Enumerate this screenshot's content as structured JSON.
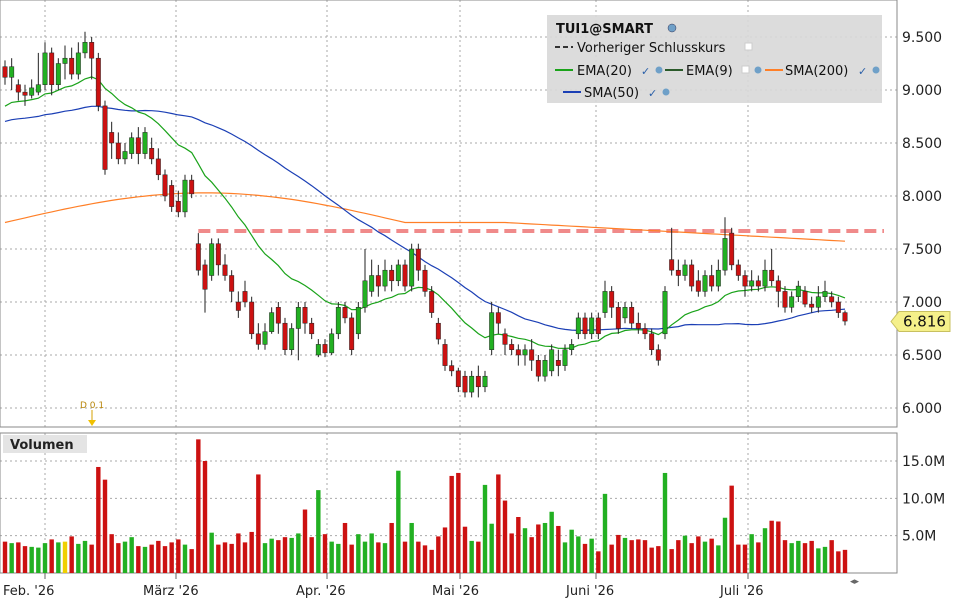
{
  "chart_data": {
    "type": "candlestick",
    "symbol": "TUI1@SMART",
    "legend": {
      "title": "TUI1@SMART",
      "prev_close_label": "Vorheriger Schlusskurs",
      "ema20_label": "EMA(20)",
      "ema9_label": "EMA(9)",
      "sma200_label": "SMA(200)",
      "sma50_label": "SMA(50)",
      "position": "top-right"
    },
    "colors": {
      "up": "#22b022",
      "down": "#cc1111",
      "ema20": "#1aa31a",
      "sma50": "#1b3fb5",
      "sma200": "#ff7f27",
      "prev_close": "#f08a8a",
      "grid": "#aaaaaa",
      "last_price_bg": "#f5f08a"
    },
    "price_axis": {
      "ticks": [
        "9.500",
        "9.000",
        "8.500",
        "8.000",
        "7.500",
        "7.000",
        "6.500",
        "6.000"
      ],
      "ylim": [
        5.8,
        9.85
      ]
    },
    "volume_axis": {
      "title": "Volumen",
      "ticks": [
        "15.0M",
        "10.0M",
        "5.0M"
      ],
      "ylim": [
        0,
        18.5
      ]
    },
    "x_axis": {
      "labels": [
        "Feb. '26",
        "März '26",
        "Apr. '26",
        "Mai '26",
        "Juni '26",
        "Juli '26"
      ]
    },
    "dividend_marker": "D 0.1",
    "last_price": "6.816",
    "prev_close_value": 7.67,
    "candles": [
      {
        "o": 9.22,
        "c": 9.12,
        "h": 9.28,
        "l": 9.05
      },
      {
        "o": 9.12,
        "c": 9.22,
        "h": 9.3,
        "l": 9.0
      },
      {
        "o": 9.05,
        "c": 8.98,
        "h": 9.1,
        "l": 8.9
      },
      {
        "o": 8.98,
        "c": 8.95,
        "h": 9.05,
        "l": 8.85
      },
      {
        "o": 8.95,
        "c": 9.02,
        "h": 9.1,
        "l": 8.92
      },
      {
        "o": 8.98,
        "c": 9.05,
        "h": 9.35,
        "l": 8.95
      },
      {
        "o": 9.05,
        "c": 9.35,
        "h": 9.45,
        "l": 9.0
      },
      {
        "o": 9.35,
        "c": 9.05,
        "h": 9.4,
        "l": 8.95
      },
      {
        "o": 9.05,
        "c": 9.25,
        "h": 9.3,
        "l": 9.0
      },
      {
        "o": 9.25,
        "c": 9.3,
        "h": 9.42,
        "l": 9.1
      },
      {
        "o": 9.3,
        "c": 9.15,
        "h": 9.4,
        "l": 9.1
      },
      {
        "o": 9.15,
        "c": 9.35,
        "h": 9.45,
        "l": 9.1
      },
      {
        "o": 9.35,
        "c": 9.45,
        "h": 9.55,
        "l": 9.3
      },
      {
        "o": 9.45,
        "c": 9.3,
        "h": 9.5,
        "l": 9.1
      },
      {
        "o": 9.3,
        "c": 8.85,
        "h": 9.35,
        "l": 8.8
      },
      {
        "o": 8.85,
        "c": 8.25,
        "h": 8.9,
        "l": 8.2
      },
      {
        "o": 8.6,
        "c": 8.5,
        "h": 8.7,
        "l": 8.35
      },
      {
        "o": 8.5,
        "c": 8.35,
        "h": 8.6,
        "l": 8.3
      },
      {
        "o": 8.35,
        "c": 8.42,
        "h": 8.5,
        "l": 8.3
      },
      {
        "o": 8.4,
        "c": 8.55,
        "h": 8.6,
        "l": 8.35
      },
      {
        "o": 8.55,
        "c": 8.4,
        "h": 8.65,
        "l": 8.3
      },
      {
        "o": 8.4,
        "c": 8.6,
        "h": 8.65,
        "l": 8.35
      },
      {
        "o": 8.45,
        "c": 8.35,
        "h": 8.55,
        "l": 8.3
      },
      {
        "o": 8.35,
        "c": 8.2,
        "h": 8.45,
        "l": 8.15
      },
      {
        "o": 8.2,
        "c": 8.0,
        "h": 8.25,
        "l": 7.95
      },
      {
        "o": 8.1,
        "c": 7.9,
        "h": 8.15,
        "l": 7.85
      },
      {
        "o": 7.95,
        "c": 7.85,
        "h": 8.05,
        "l": 7.8
      },
      {
        "o": 7.85,
        "c": 8.15,
        "h": 8.2,
        "l": 7.8
      },
      {
        "o": 8.15,
        "c": 8.02,
        "h": 8.2,
        "l": 7.98
      },
      {
        "o": 7.55,
        "c": 7.3,
        "h": 7.65,
        "l": 7.25
      },
      {
        "o": 7.35,
        "c": 7.12,
        "h": 7.4,
        "l": 6.9
      },
      {
        "o": 7.25,
        "c": 7.55,
        "h": 7.6,
        "l": 7.2
      },
      {
        "o": 7.55,
        "c": 7.35,
        "h": 7.6,
        "l": 7.25
      },
      {
        "o": 7.35,
        "c": 7.25,
        "h": 7.45,
        "l": 7.2
      },
      {
        "o": 7.25,
        "c": 7.1,
        "h": 7.3,
        "l": 7.0
      },
      {
        "o": 7.0,
        "c": 6.92,
        "h": 7.1,
        "l": 6.85
      },
      {
        "o": 7.1,
        "c": 7.0,
        "h": 7.2,
        "l": 6.95
      },
      {
        "o": 7.0,
        "c": 6.7,
        "h": 7.05,
        "l": 6.65
      },
      {
        "o": 6.7,
        "c": 6.6,
        "h": 6.8,
        "l": 6.55
      },
      {
        "o": 6.6,
        "c": 6.72,
        "h": 6.8,
        "l": 6.55
      },
      {
        "o": 6.72,
        "c": 6.9,
        "h": 6.95,
        "l": 6.7
      },
      {
        "o": 6.95,
        "c": 6.8,
        "h": 7.0,
        "l": 6.7
      },
      {
        "o": 6.8,
        "c": 6.55,
        "h": 6.85,
        "l": 6.5
      },
      {
        "o": 6.55,
        "c": 6.75,
        "h": 6.8,
        "l": 6.5
      },
      {
        "o": 6.75,
        "c": 6.95,
        "h": 7.0,
        "l": 6.45
      },
      {
        "o": 6.95,
        "c": 6.8,
        "h": 7.0,
        "l": 6.7
      },
      {
        "o": 6.8,
        "c": 6.7,
        "h": 6.85,
        "l": 6.65
      },
      {
        "o": 6.5,
        "c": 6.6,
        "h": 6.65,
        "l": 6.48
      },
      {
        "o": 6.6,
        "c": 6.52,
        "h": 6.65,
        "l": 6.48
      },
      {
        "o": 6.52,
        "c": 6.7,
        "h": 6.75,
        "l": 6.5
      },
      {
        "o": 6.7,
        "c": 6.95,
        "h": 7.0,
        "l": 6.65
      },
      {
        "o": 6.95,
        "c": 6.85,
        "h": 7.0,
        "l": 6.8
      },
      {
        "o": 6.85,
        "c": 6.55,
        "h": 6.9,
        "l": 6.5
      },
      {
        "o": 6.7,
        "c": 6.95,
        "h": 7.0,
        "l": 6.65
      },
      {
        "o": 6.95,
        "c": 7.2,
        "h": 7.5,
        "l": 6.9
      },
      {
        "o": 7.1,
        "c": 7.25,
        "h": 7.4,
        "l": 7.05
      },
      {
        "o": 7.25,
        "c": 7.15,
        "h": 7.35,
        "l": 7.05
      },
      {
        "o": 7.15,
        "c": 7.3,
        "h": 7.4,
        "l": 7.1
      },
      {
        "o": 7.3,
        "c": 7.2,
        "h": 7.35,
        "l": 7.1
      },
      {
        "o": 7.2,
        "c": 7.35,
        "h": 7.4,
        "l": 7.15
      },
      {
        "o": 7.35,
        "c": 7.15,
        "h": 7.4,
        "l": 7.1
      },
      {
        "o": 7.15,
        "c": 7.5,
        "h": 7.55,
        "l": 7.1
      },
      {
        "o": 7.5,
        "c": 7.3,
        "h": 7.55,
        "l": 7.2
      },
      {
        "o": 7.3,
        "c": 7.1,
        "h": 7.35,
        "l": 7.05
      },
      {
        "o": 7.1,
        "c": 6.9,
        "h": 7.15,
        "l": 6.85
      },
      {
        "o": 6.8,
        "c": 6.65,
        "h": 6.85,
        "l": 6.6
      },
      {
        "o": 6.6,
        "c": 6.4,
        "h": 6.65,
        "l": 6.35
      },
      {
        "o": 6.4,
        "c": 6.35,
        "h": 6.45,
        "l": 6.3
      },
      {
        "o": 6.35,
        "c": 6.2,
        "h": 6.38,
        "l": 6.15
      },
      {
        "o": 6.3,
        "c": 6.15,
        "h": 6.35,
        "l": 6.1
      },
      {
        "o": 6.15,
        "c": 6.3,
        "h": 6.35,
        "l": 6.1
      },
      {
        "o": 6.3,
        "c": 6.2,
        "h": 6.4,
        "l": 6.1
      },
      {
        "o": 6.2,
        "c": 6.3,
        "h": 6.35,
        "l": 6.15
      },
      {
        "o": 6.55,
        "c": 6.9,
        "h": 7.0,
        "l": 6.5
      },
      {
        "o": 6.9,
        "c": 6.8,
        "h": 6.95,
        "l": 6.7
      },
      {
        "o": 6.7,
        "c": 6.6,
        "h": 6.75,
        "l": 6.5
      },
      {
        "o": 6.6,
        "c": 6.55,
        "h": 6.65,
        "l": 6.5
      },
      {
        "o": 6.55,
        "c": 6.5,
        "h": 6.6,
        "l": 6.4
      },
      {
        "o": 6.5,
        "c": 6.55,
        "h": 6.6,
        "l": 6.4
      },
      {
        "o": 6.55,
        "c": 6.45,
        "h": 6.65,
        "l": 6.35
      },
      {
        "o": 6.45,
        "c": 6.3,
        "h": 6.5,
        "l": 6.25
      },
      {
        "o": 6.3,
        "c": 6.45,
        "h": 6.5,
        "l": 6.25
      },
      {
        "o": 6.35,
        "c": 6.55,
        "h": 6.6,
        "l": 6.3
      },
      {
        "o": 6.45,
        "c": 6.4,
        "h": 6.55,
        "l": 6.3
      },
      {
        "o": 6.4,
        "c": 6.55,
        "h": 6.6,
        "l": 6.35
      },
      {
        "o": 6.55,
        "c": 6.6,
        "h": 6.65,
        "l": 6.5
      },
      {
        "o": 6.7,
        "c": 6.85,
        "h": 6.9,
        "l": 6.65
      },
      {
        "o": 6.85,
        "c": 6.7,
        "h": 6.9,
        "l": 6.65
      },
      {
        "o": 6.7,
        "c": 6.85,
        "h": 6.9,
        "l": 6.65
      },
      {
        "o": 6.85,
        "c": 6.7,
        "h": 6.9,
        "l": 6.65
      },
      {
        "o": 6.9,
        "c": 7.1,
        "h": 7.2,
        "l": 6.85
      },
      {
        "o": 7.1,
        "c": 6.95,
        "h": 7.15,
        "l": 6.85
      },
      {
        "o": 6.95,
        "c": 6.75,
        "h": 7.0,
        "l": 6.7
      },
      {
        "o": 6.85,
        "c": 6.95,
        "h": 7.0,
        "l": 6.8
      },
      {
        "o": 6.95,
        "c": 6.8,
        "h": 7.0,
        "l": 6.75
      },
      {
        "o": 6.8,
        "c": 6.75,
        "h": 6.9,
        "l": 6.7
      },
      {
        "o": 6.75,
        "c": 6.7,
        "h": 6.8,
        "l": 6.65
      },
      {
        "o": 6.7,
        "c": 6.55,
        "h": 6.75,
        "l": 6.5
      },
      {
        "o": 6.55,
        "c": 6.45,
        "h": 6.6,
        "l": 6.4
      },
      {
        "o": 6.7,
        "c": 7.1,
        "h": 7.15,
        "l": 6.65
      },
      {
        "o": 7.4,
        "c": 7.3,
        "h": 7.7,
        "l": 7.25
      },
      {
        "o": 7.3,
        "c": 7.25,
        "h": 7.4,
        "l": 7.15
      },
      {
        "o": 7.25,
        "c": 7.35,
        "h": 7.4,
        "l": 7.2
      },
      {
        "o": 7.35,
        "c": 7.15,
        "h": 7.4,
        "l": 7.1
      },
      {
        "o": 7.2,
        "c": 7.1,
        "h": 7.3,
        "l": 7.05
      },
      {
        "o": 7.1,
        "c": 7.25,
        "h": 7.3,
        "l": 7.05
      },
      {
        "o": 7.25,
        "c": 7.15,
        "h": 7.35,
        "l": 7.1
      },
      {
        "o": 7.15,
        "c": 7.3,
        "h": 7.4,
        "l": 7.1
      },
      {
        "o": 7.3,
        "c": 7.6,
        "h": 7.8,
        "l": 7.25
      },
      {
        "o": 7.65,
        "c": 7.35,
        "h": 7.7,
        "l": 7.3
      },
      {
        "o": 7.35,
        "c": 7.25,
        "h": 7.4,
        "l": 7.2
      },
      {
        "o": 7.25,
        "c": 7.15,
        "h": 7.3,
        "l": 7.05
      },
      {
        "o": 7.15,
        "c": 7.2,
        "h": 7.3,
        "l": 7.1
      },
      {
        "o": 7.2,
        "c": 7.15,
        "h": 7.25,
        "l": 7.1
      },
      {
        "o": 7.15,
        "c": 7.3,
        "h": 7.4,
        "l": 7.1
      },
      {
        "o": 7.3,
        "c": 7.2,
        "h": 7.5,
        "l": 7.15
      },
      {
        "o": 7.2,
        "c": 7.1,
        "h": 7.25,
        "l": 6.95
      },
      {
        "o": 7.1,
        "c": 6.95,
        "h": 7.15,
        "l": 6.9
      },
      {
        "o": 6.95,
        "c": 7.05,
        "h": 7.1,
        "l": 6.9
      },
      {
        "o": 7.05,
        "c": 7.15,
        "h": 7.2,
        "l": 7.0
      },
      {
        "o": 7.1,
        "c": 6.98,
        "h": 7.15,
        "l": 6.95
      },
      {
        "o": 6.98,
        "c": 6.95,
        "h": 7.05,
        "l": 6.9
      },
      {
        "o": 6.95,
        "c": 7.05,
        "h": 7.15,
        "l": 6.9
      },
      {
        "o": 7.05,
        "c": 7.1,
        "h": 7.2,
        "l": 7.0
      },
      {
        "o": 7.05,
        "c": 7.0,
        "h": 7.1,
        "l": 6.95
      },
      {
        "o": 7.0,
        "c": 6.9,
        "h": 7.05,
        "l": 6.85
      },
      {
        "o": 6.9,
        "c": 6.82,
        "h": 6.92,
        "l": 6.78
      }
    ],
    "volumes": [
      4.2,
      4.0,
      4.1,
      3.6,
      3.5,
      3.4,
      4.0,
      4.5,
      4.1,
      4.2,
      4.9,
      3.9,
      4.3,
      3.8,
      14.2,
      12.5,
      5.2,
      4.0,
      4.2,
      4.8,
      3.6,
      3.5,
      3.8,
      4.3,
      3.6,
      4.1,
      4.5,
      3.8,
      3.2,
      17.9,
      15.0,
      5.4,
      3.8,
      4.1,
      3.9,
      5.3,
      4.1,
      5.5,
      13.2,
      4.0,
      4.6,
      4.4,
      4.8,
      4.7,
      5.3,
      8.5,
      4.8,
      11.1,
      5.2,
      4.2,
      3.9,
      6.7,
      3.8,
      5.2,
      4.2,
      5.3,
      4.1,
      4.0,
      6.7,
      13.7,
      4.2,
      6.7,
      4.2,
      3.7,
      3.1,
      4.9,
      6.1,
      13.0,
      13.4,
      6.2,
      4.3,
      4.2,
      11.8,
      6.6,
      13.2,
      9.7,
      5.3,
      7.5,
      6.0,
      4.8,
      6.5,
      6.7,
      8.2,
      6.3,
      4.1,
      5.8,
      4.9,
      3.9,
      4.6,
      2.9,
      10.6,
      3.8,
      5.1,
      4.7,
      4.4,
      4.5,
      4.4,
      3.4,
      3.6,
      13.4,
      3.2,
      4.4,
      5.0,
      4.0,
      4.9,
      4.2,
      4.6,
      3.7,
      7.4,
      11.7,
      3.8,
      3.8,
      5.2,
      4.1,
      6.0,
      7.0,
      6.9,
      4.4,
      4.0,
      4.3,
      4.0,
      4.3,
      3.3,
      3.5,
      4.4,
      2.9,
      3.1
    ]
  }
}
